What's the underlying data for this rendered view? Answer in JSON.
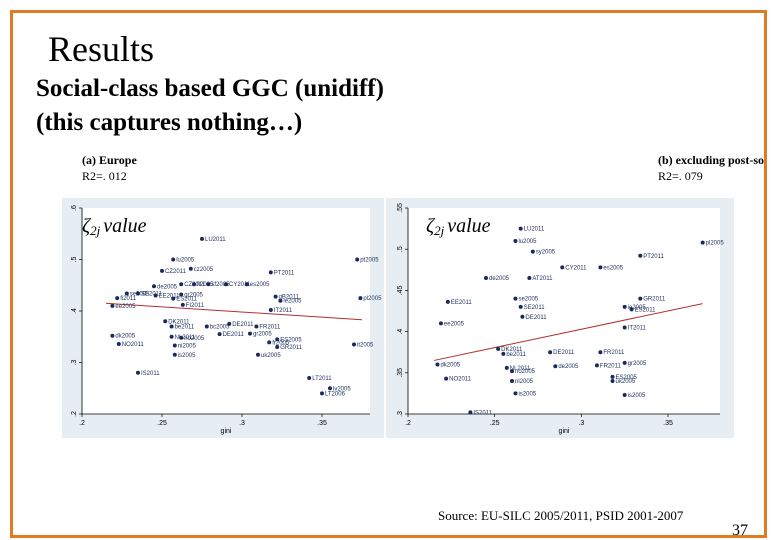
{
  "slide": {
    "title": "Results",
    "subtitle_line1": "Social-class based GGC (unidiff)",
    "subtitle_line2": "(this captures nothing…)",
    "source": "Source: EU-SILC 2005/2011, PSID 2001-2007",
    "page_number": "37"
  },
  "colors": {
    "frame": "#e07b24",
    "marker": "#1a2a5a",
    "fit": "#b03030",
    "panel_bg": "#e6eef3"
  },
  "chart_data": [
    {
      "type": "scatter",
      "panel_label": "(a)   Europe",
      "r2": "R2=. 012",
      "ylabel_main": "ζ",
      "ylabel_sub": "2j",
      "ylabel_word": "value",
      "xlabel": "gini",
      "xlim": [
        0.2,
        0.38
      ],
      "ylim": [
        0.2,
        0.6
      ],
      "x_ticks": [
        ".2",
        ".25",
        ".3",
        ".35"
      ],
      "x_tick_values": [
        0.2,
        0.25,
        0.3,
        0.35
      ],
      "y_ticks": [
        ".2",
        ".3",
        ".4",
        ".5",
        ".6"
      ],
      "y_tick_values": [
        0.2,
        0.3,
        0.4,
        0.5,
        0.6
      ],
      "fit": [
        [
          0.215,
          0.415
        ],
        [
          0.375,
          0.383
        ]
      ],
      "points": [
        {
          "x": 0.275,
          "y": 0.54,
          "label": "LU2011"
        },
        {
          "x": 0.257,
          "y": 0.5,
          "label": "lu2005"
        },
        {
          "x": 0.25,
          "y": 0.478,
          "label": "CZ2011"
        },
        {
          "x": 0.268,
          "y": 0.482,
          "label": "cz2005"
        },
        {
          "x": 0.372,
          "y": 0.5,
          "label": "pt2005"
        },
        {
          "x": 0.318,
          "y": 0.475,
          "label": "PT2011"
        },
        {
          "x": 0.245,
          "y": 0.448,
          "label": "de2005"
        },
        {
          "x": 0.262,
          "y": 0.452,
          "label": "CZ2011"
        },
        {
          "x": 0.27,
          "y": 0.452,
          "label": "fi2005"
        },
        {
          "x": 0.279,
          "y": 0.452,
          "label": "sf2005"
        },
        {
          "x": 0.29,
          "y": 0.452,
          "label": "CY2011"
        },
        {
          "x": 0.303,
          "y": 0.452,
          "label": "es2005"
        },
        {
          "x": 0.235,
          "y": 0.434,
          "label": "SE2011"
        },
        {
          "x": 0.228,
          "y": 0.434,
          "label": "se2005"
        },
        {
          "x": 0.222,
          "y": 0.425,
          "label": "fi2011"
        },
        {
          "x": 0.246,
          "y": 0.43,
          "label": "EE2011"
        },
        {
          "x": 0.262,
          "y": 0.432,
          "label": "gr2005"
        },
        {
          "x": 0.257,
          "y": 0.424,
          "label": "ES2011"
        },
        {
          "x": 0.321,
          "y": 0.428,
          "label": "gB2011"
        },
        {
          "x": 0.324,
          "y": 0.42,
          "label": "ie2005"
        },
        {
          "x": 0.374,
          "y": 0.425,
          "label": "pl2005"
        },
        {
          "x": 0.263,
          "y": 0.412,
          "label": "FI2011"
        },
        {
          "x": 0.219,
          "y": 0.41,
          "label": "ee2005"
        },
        {
          "x": 0.318,
          "y": 0.402,
          "label": "IT2011"
        },
        {
          "x": 0.252,
          "y": 0.38,
          "label": "DK2011"
        },
        {
          "x": 0.256,
          "y": 0.37,
          "label": "be2011"
        },
        {
          "x": 0.278,
          "y": 0.37,
          "label": "bc2005"
        },
        {
          "x": 0.292,
          "y": 0.375,
          "label": "DE2011"
        },
        {
          "x": 0.309,
          "y": 0.37,
          "label": "FR2011"
        },
        {
          "x": 0.219,
          "y": 0.352,
          "label": "dk2005"
        },
        {
          "x": 0.223,
          "y": 0.336,
          "label": "NO2011"
        },
        {
          "x": 0.256,
          "y": 0.35,
          "label": "NL2011"
        },
        {
          "x": 0.262,
          "y": 0.348,
          "label": "no2005"
        },
        {
          "x": 0.286,
          "y": 0.355,
          "label": "DE2011"
        },
        {
          "x": 0.258,
          "y": 0.333,
          "label": "ni2005"
        },
        {
          "x": 0.305,
          "y": 0.356,
          "label": "gr2005"
        },
        {
          "x": 0.322,
          "y": 0.345,
          "label": "ES2005"
        },
        {
          "x": 0.317,
          "y": 0.339,
          "label": "fr2005"
        },
        {
          "x": 0.322,
          "y": 0.33,
          "label": "GR2011"
        },
        {
          "x": 0.37,
          "y": 0.335,
          "label": "it2005"
        },
        {
          "x": 0.258,
          "y": 0.315,
          "label": "is2005"
        },
        {
          "x": 0.31,
          "y": 0.315,
          "label": "uk2005"
        },
        {
          "x": 0.235,
          "y": 0.28,
          "label": "IS2011"
        },
        {
          "x": 0.342,
          "y": 0.27,
          "label": "LT2011"
        },
        {
          "x": 0.355,
          "y": 0.25,
          "label": "lv2005"
        },
        {
          "x": 0.35,
          "y": 0.24,
          "label": "LT2006"
        }
      ]
    },
    {
      "type": "scatter",
      "panel_label": "(b) excluding post-so",
      "r2": "R2=. 079",
      "ylabel_main": "ζ",
      "ylabel_sub": "2j",
      "ylabel_word": "value",
      "xlabel": "gini",
      "xlim": [
        0.2,
        0.38
      ],
      "ylim": [
        0.3,
        0.55
      ],
      "x_ticks": [
        ".2",
        ".25",
        ".3",
        ".35"
      ],
      "x_tick_values": [
        0.2,
        0.25,
        0.3,
        0.35
      ],
      "y_ticks": [
        ".3",
        ".35",
        ".4",
        ".45",
        ".5",
        ".55"
      ],
      "y_tick_values": [
        0.3,
        0.35,
        0.4,
        0.45,
        0.5,
        0.55
      ],
      "fit": [
        [
          0.215,
          0.365
        ],
        [
          0.37,
          0.434
        ]
      ],
      "points": [
        {
          "x": 0.265,
          "y": 0.525,
          "label": "LU2011"
        },
        {
          "x": 0.262,
          "y": 0.51,
          "label": "lu2005"
        },
        {
          "x": 0.37,
          "y": 0.508,
          "label": "pl2005"
        },
        {
          "x": 0.272,
          "y": 0.497,
          "label": "sy2005"
        },
        {
          "x": 0.334,
          "y": 0.492,
          "label": "PT2011"
        },
        {
          "x": 0.289,
          "y": 0.478,
          "label": "CY2011"
        },
        {
          "x": 0.311,
          "y": 0.478,
          "label": "es2005"
        },
        {
          "x": 0.245,
          "y": 0.465,
          "label": "de2005"
        },
        {
          "x": 0.27,
          "y": 0.465,
          "label": "AT2011"
        },
        {
          "x": 0.223,
          "y": 0.436,
          "label": "EE2011"
        },
        {
          "x": 0.262,
          "y": 0.44,
          "label": "se2005"
        },
        {
          "x": 0.265,
          "y": 0.43,
          "label": "SE2011"
        },
        {
          "x": 0.334,
          "y": 0.44,
          "label": "GR2011"
        },
        {
          "x": 0.325,
          "y": 0.43,
          "label": "ie2005"
        },
        {
          "x": 0.329,
          "y": 0.427,
          "label": "ES2011"
        },
        {
          "x": 0.266,
          "y": 0.418,
          "label": "DE2011"
        },
        {
          "x": 0.219,
          "y": 0.41,
          "label": "ee2005"
        },
        {
          "x": 0.325,
          "y": 0.405,
          "label": "IT2011"
        },
        {
          "x": 0.252,
          "y": 0.379,
          "label": "DK2011"
        },
        {
          "x": 0.255,
          "y": 0.373,
          "label": "be2011"
        },
        {
          "x": 0.282,
          "y": 0.375,
          "label": "DE2011"
        },
        {
          "x": 0.311,
          "y": 0.375,
          "label": "FR2011"
        },
        {
          "x": 0.217,
          "y": 0.36,
          "label": "dk2005"
        },
        {
          "x": 0.257,
          "y": 0.356,
          "label": "NL2011"
        },
        {
          "x": 0.26,
          "y": 0.352,
          "label": "no2005"
        },
        {
          "x": 0.285,
          "y": 0.358,
          "label": "de2005"
        },
        {
          "x": 0.309,
          "y": 0.359,
          "label": "FR2011"
        },
        {
          "x": 0.325,
          "y": 0.362,
          "label": "gr2005"
        },
        {
          "x": 0.222,
          "y": 0.343,
          "label": "NO2011"
        },
        {
          "x": 0.26,
          "y": 0.34,
          "label": "nl2005"
        },
        {
          "x": 0.318,
          "y": 0.345,
          "label": "ES2005"
        },
        {
          "x": 0.318,
          "y": 0.34,
          "label": "uk2005"
        },
        {
          "x": 0.262,
          "y": 0.325,
          "label": "is2005"
        },
        {
          "x": 0.325,
          "y": 0.323,
          "label": "is2005"
        },
        {
          "x": 0.236,
          "y": 0.302,
          "label": "IS2011"
        }
      ]
    }
  ]
}
